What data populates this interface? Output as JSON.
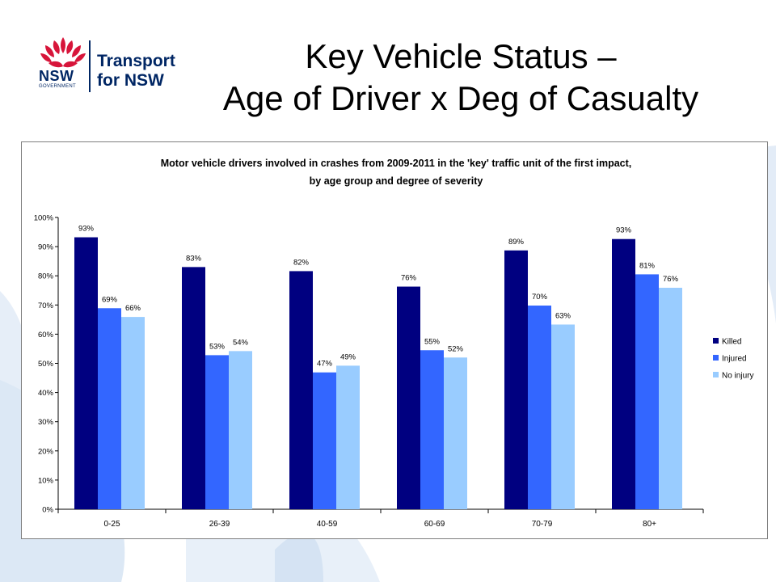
{
  "slide": {
    "title_line1": "Key Vehicle Status –",
    "title_line2": "Age of Driver x Deg of Casualty"
  },
  "logo": {
    "nsw": "NSW",
    "government": "GOVERNMENT",
    "brand_line1": "Transport",
    "brand_line2": "for NSW",
    "colors": {
      "waratah": "#d7153a",
      "navy": "#002664"
    }
  },
  "chart_data": {
    "type": "bar",
    "title_line1": "Motor vehicle drivers involved in crashes from 2009-2011 in the 'key' traffic unit of the first impact,",
    "title_line2": "by age group and degree of severity",
    "categories": [
      "0-25",
      "26-39",
      "40-59",
      "60-69",
      "70-79",
      "80+"
    ],
    "series": [
      {
        "name": "Killed",
        "color": "#000080",
        "values": [
          93,
          83,
          82,
          76,
          89,
          93
        ]
      },
      {
        "name": "Injured",
        "color": "#3366ff",
        "values": [
          69,
          53,
          47,
          55,
          70,
          81
        ]
      },
      {
        "name": "No injury",
        "color": "#99ccff",
        "values": [
          66,
          54,
          49,
          52,
          63,
          76
        ]
      }
    ],
    "exact_values": [
      [
        93.2,
        83.0,
        81.6,
        76.3,
        88.7,
        92.6
      ],
      [
        68.9,
        52.8,
        46.9,
        54.5,
        69.8,
        80.5
      ],
      [
        65.9,
        54.2,
        49.2,
        52.0,
        63.3,
        75.9
      ]
    ],
    "ylim": [
      0,
      100
    ],
    "yticks": [
      "0%",
      "10%",
      "20%",
      "30%",
      "40%",
      "50%",
      "60%",
      "70%",
      "80%",
      "90%",
      "100%"
    ],
    "xlabel": "",
    "ylabel": "",
    "grid": false,
    "legend": "right"
  }
}
